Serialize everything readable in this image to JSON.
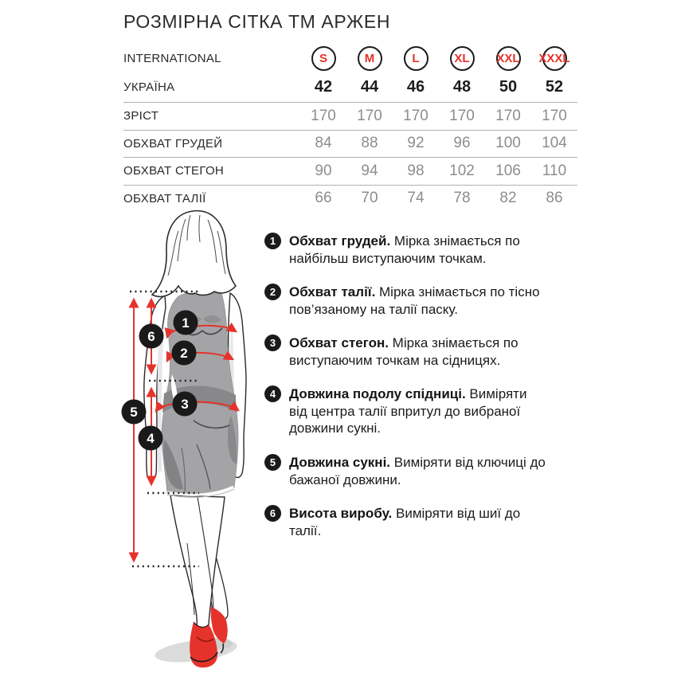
{
  "title": "РОЗМІРНА СІТКА ТМ АРЖЕН",
  "size_table": {
    "international_label": "INTERNATIONAL",
    "ukraine_label": "УКРАЇНА",
    "international_sizes": [
      "S",
      "M",
      "L",
      "XL",
      "XXL",
      "XXXL"
    ],
    "ukraine_sizes": [
      "42",
      "44",
      "46",
      "48",
      "50",
      "52"
    ],
    "rows": [
      {
        "label": "ЗРІСТ",
        "values": [
          "170",
          "170",
          "170",
          "170",
          "170",
          "170"
        ]
      },
      {
        "label": "ОБХВАТ ГРУДЕЙ",
        "values": [
          "84",
          "88",
          "92",
          "96",
          "100",
          "104"
        ]
      },
      {
        "label": "ОБХВАТ СТЕГОН",
        "values": [
          "90",
          "94",
          "98",
          "102",
          "106",
          "110"
        ]
      },
      {
        "label": "ОБХВАТ ТАЛІЇ",
        "values": [
          "66",
          "70",
          "74",
          "78",
          "82",
          "86"
        ]
      }
    ]
  },
  "measurements": [
    {
      "num": "1",
      "term": "Обхват грудей.",
      "desc": "Мірка знімається по найбільш виступаючим точкам."
    },
    {
      "num": "2",
      "term": "Обхват талії.",
      "desc": "Мірка знімається по тісно пов’язаному на талії паску."
    },
    {
      "num": "3",
      "term": "Обхват стегон.",
      "desc": "Мірка знімається по виступаючим точкам на сідницях."
    },
    {
      "num": "4",
      "term": "Довжина подолу спідниці.",
      "desc": "Виміряти від центра талії впритул до вибраної довжини сукні."
    },
    {
      "num": "5",
      "term": "Довжина сукні.",
      "desc": "Виміряти від ключиці до бажаної довжини."
    },
    {
      "num": "6",
      "term": "Висота виробу.",
      "desc": "Виміряти від шиї до талії."
    }
  ],
  "figure": {
    "marker_labels": [
      "1",
      "2",
      "3",
      "4",
      "5",
      "6"
    ]
  },
  "colors": {
    "accent_red": "#e5332b",
    "circle_black": "#1a1a1b",
    "value_gray": "#8d8d8f",
    "divider_gray": "#b1b1b1",
    "dress_gray": "#a4a4a6"
  }
}
